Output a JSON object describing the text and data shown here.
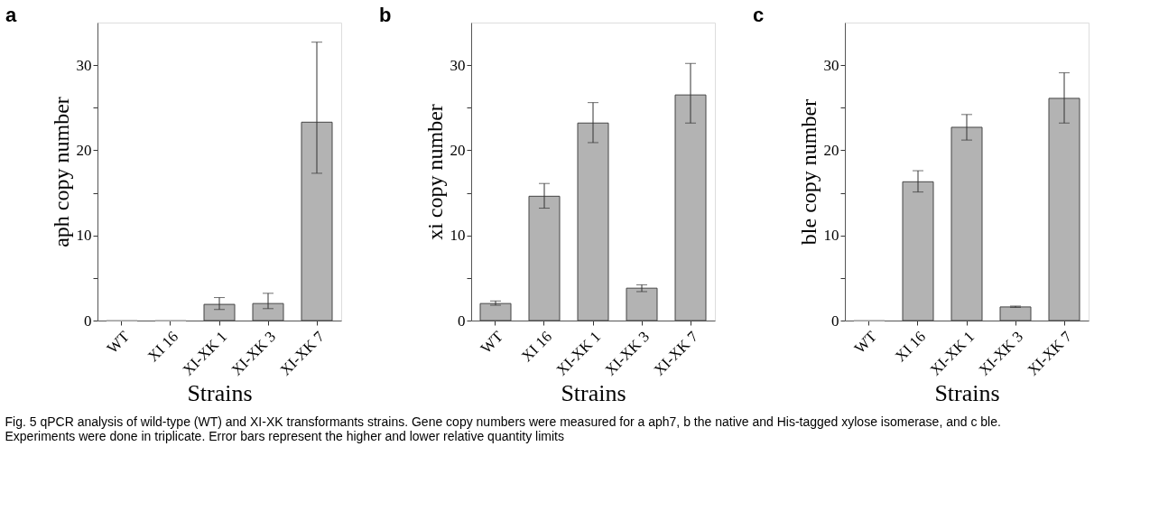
{
  "chart_data": [
    {
      "type": "bar",
      "title": "a",
      "xlabel": "Strains",
      "ylabel": "aph copy number",
      "categories": [
        "WT",
        "XI 16",
        "XI-XK 1",
        "XI-XK 3",
        "XI-XK 7"
      ],
      "values": [
        0,
        0,
        1.9,
        2.0,
        23.3
      ],
      "errors": [
        null,
        null,
        [
          1.3,
          2.7
        ],
        [
          1.4,
          3.2
        ],
        [
          17.3,
          32.7
        ]
      ],
      "color": "#b3b3b3",
      "ylim": [
        0,
        35
      ],
      "yticks": [
        0,
        {
          "value": 5,
          "label": null
        },
        10,
        {
          "value": 15,
          "label": null
        },
        20,
        {
          "value": 25,
          "label": null
        },
        30
      ],
      "grid": false,
      "annotations": [
        "Fig. 5 qPCR analysis of wild-type (WT) and XI-XK transformants strains. Gene copy numbers were measured for a aph7, b the native and His-tagged xylose isomerase, and c ble. Experiments were done in triplicate. Error bars represent the higher and lower relative quantity limits"
      ]
    },
    {
      "type": "bar",
      "title": "b",
      "xlabel": "Strains",
      "ylabel": "xi copy number",
      "categories": [
        "WT",
        "XI 16",
        "XI-XK 1",
        "XI-XK 3",
        "XI-XK 7"
      ],
      "values": [
        2.0,
        14.6,
        23.2,
        3.8,
        26.5
      ],
      "errors": [
        [
          1.8,
          2.3
        ],
        [
          13.2,
          16.1
        ],
        [
          20.9,
          25.6
        ],
        [
          3.4,
          4.2
        ],
        [
          23.2,
          30.2
        ]
      ],
      "color": "#b3b3b3",
      "ylim": [
        0,
        35
      ],
      "yticks": [
        0,
        {
          "value": 5,
          "label": null
        },
        10,
        {
          "value": 15,
          "label": null
        },
        20,
        {
          "value": 25,
          "label": null
        },
        30
      ],
      "grid": false
    },
    {
      "type": "bar",
      "title": "c",
      "xlabel": "Strains",
      "ylabel": "ble copy number",
      "categories": [
        "WT",
        "XI 16",
        "XI-XK 1",
        "XI-XK 3",
        "XI-XK 7"
      ],
      "values": [
        0,
        16.3,
        22.7,
        1.6,
        26.1
      ],
      "errors": [
        null,
        [
          15.1,
          17.6
        ],
        [
          21.2,
          24.2
        ],
        [
          1.55,
          1.7
        ],
        [
          23.2,
          29.1
        ]
      ],
      "color": "#b3b3b3",
      "ylim": [
        0,
        35
      ],
      "yticks": [
        0,
        {
          "value": 5,
          "label": null
        },
        10,
        {
          "value": 15,
          "label": null
        },
        20,
        {
          "value": 25,
          "label": null
        },
        30
      ],
      "grid": false
    }
  ]
}
